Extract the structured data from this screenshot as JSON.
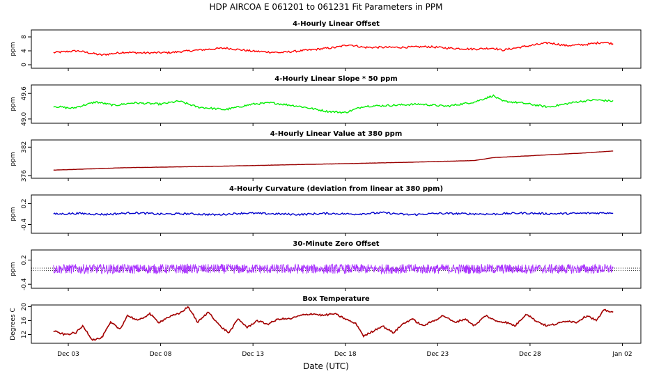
{
  "figure": {
    "title": "HDP   AIRCOA E   061201 to 061231   Fit Parameters in PPM",
    "xlabel": "Date (UTC)",
    "xticks": [
      "Dec 03",
      "Dec 08",
      "Dec 13",
      "Dec 18",
      "Dec 23",
      "Dec 28",
      "Jan 02"
    ]
  },
  "chart_data": [
    {
      "type": "line",
      "title": "4-Hourly Linear Offset",
      "ylabel": "ppm",
      "ylim": [
        -1,
        10
      ],
      "yticks": [
        "0",
        "4",
        "8"
      ],
      "xlim": [
        0,
        33
      ],
      "color": "#ff0000",
      "series_style": "line",
      "x": [
        1.2,
        2.5,
        3.8,
        5.0,
        6.0,
        7.5,
        9.0,
        10.5,
        12.0,
        13.5,
        15.0,
        16.5,
        17.2,
        18.0,
        20.0,
        21.5,
        22.5,
        24.0,
        25.0,
        25.5,
        27.0,
        28.0,
        29.0,
        30.0,
        31.0,
        31.5
      ],
      "values": [
        3.5,
        4.0,
        2.8,
        3.6,
        3.4,
        3.5,
        4.2,
        4.8,
        3.9,
        3.5,
        4.2,
        5.0,
        5.8,
        5.0,
        5.0,
        5.2,
        4.8,
        4.5,
        4.8,
        4.2,
        5.5,
        6.3,
        5.5,
        5.8,
        6.5,
        6.0
      ]
    },
    {
      "type": "line",
      "title": "4-Hourly Linear Slope * 50 ppm",
      "ylabel": "ppm",
      "ylim": [
        48.9,
        49.8
      ],
      "yticks": [
        "49.0",
        "49.6"
      ],
      "xlim": [
        0,
        33
      ],
      "color": "#00ee00",
      "series_style": "line",
      "x": [
        1.2,
        2.2,
        3.5,
        4.5,
        5.5,
        7.0,
        8.0,
        9.0,
        10.5,
        12.0,
        13.0,
        14.5,
        16.0,
        17.0,
        18.0,
        19.5,
        21.0,
        22.5,
        24.0,
        25.0,
        25.5,
        26.5,
        28.0,
        29.5,
        30.5,
        31.5
      ],
      "values": [
        49.3,
        49.25,
        49.4,
        49.32,
        49.38,
        49.35,
        49.42,
        49.28,
        49.22,
        49.35,
        49.38,
        49.3,
        49.18,
        49.15,
        49.3,
        49.32,
        49.35,
        49.3,
        49.4,
        49.55,
        49.42,
        49.38,
        49.28,
        49.4,
        49.45,
        49.42
      ]
    },
    {
      "type": "line",
      "title": "4-Hourly Linear Value at 380 ppm",
      "ylabel": "ppm",
      "ylim": [
        375.5,
        383.5
      ],
      "yticks": [
        "376",
        "382"
      ],
      "xlim": [
        0,
        33
      ],
      "color": "#990000",
      "series_style": "line",
      "x": [
        1.2,
        5.0,
        10.0,
        15.0,
        20.0,
        24.0,
        25.0,
        30.0,
        31.5
      ],
      "values": [
        377.2,
        377.7,
        378.0,
        378.4,
        378.8,
        379.2,
        379.8,
        380.8,
        381.2
      ]
    },
    {
      "type": "line",
      "title": "4-Hourly Curvature (deviation from linear at 380 ppm)",
      "ylabel": "ppm",
      "ylim": [
        -0.65,
        0.45
      ],
      "yticks": [
        "-0.4",
        "0.2"
      ],
      "xlim": [
        0,
        33
      ],
      "color": "#0000cc",
      "series_style": "line",
      "x": [
        1.2,
        2.5,
        4.0,
        5.5,
        7.0,
        8.5,
        10.0,
        11.5,
        13.0,
        14.5,
        16.0,
        17.5,
        19.0,
        20.5,
        22.0,
        23.5,
        25.0,
        26.5,
        28.0,
        29.5,
        31.5
      ],
      "values": [
        -0.1,
        -0.08,
        -0.11,
        -0.06,
        -0.1,
        -0.09,
        -0.12,
        -0.07,
        -0.09,
        -0.11,
        -0.08,
        -0.1,
        -0.06,
        -0.12,
        -0.08,
        -0.09,
        -0.1,
        -0.07,
        -0.09,
        -0.08,
        -0.06
      ]
    },
    {
      "type": "scatter",
      "title": "30-Minute Zero Offset",
      "ylabel": "ppm",
      "ylim": [
        -0.5,
        0.45
      ],
      "yticks": [
        "-0.4",
        "0.2"
      ],
      "xlim": [
        0,
        33
      ],
      "color": "#aa33ff",
      "series_style": "noise",
      "x": [
        1.2,
        31.5
      ],
      "values": [
        -0.02,
        -0.02
      ],
      "spread": 0.12,
      "reference_lines": [
        0.0,
        -0.06
      ]
    },
    {
      "type": "line",
      "title": "Box Temperature",
      "ylabel": "Degrees C",
      "ylim": [
        9.5,
        20.5
      ],
      "yticks": [
        "12",
        "16",
        "20"
      ],
      "xlim": [
        0,
        33
      ],
      "color": "#b00000",
      "series_style": "line",
      "x": [
        1.2,
        1.8,
        2.4,
        2.8,
        3.3,
        3.8,
        4.3,
        4.8,
        5.2,
        5.8,
        6.4,
        6.9,
        7.4,
        8.0,
        8.5,
        9.0,
        9.6,
        10.2,
        10.7,
        11.2,
        11.7,
        12.2,
        12.8,
        13.4,
        14.0,
        14.6,
        15.2,
        15.8,
        16.4,
        17.0,
        17.6,
        18.0,
        18.5,
        19.0,
        19.6,
        20.1,
        20.6,
        21.2,
        21.8,
        22.3,
        22.9,
        23.5,
        24.0,
        24.6,
        25.1,
        25.7,
        26.2,
        26.8,
        27.3,
        27.9,
        28.4,
        29.0,
        29.5,
        30.1,
        30.6,
        31.0,
        31.5
      ],
      "values": [
        13,
        12,
        12.5,
        14.5,
        10.5,
        11,
        15.5,
        13.5,
        17.5,
        16,
        18,
        15.5,
        17,
        18,
        20,
        15.5,
        18.5,
        14.5,
        12.5,
        16.5,
        14,
        16,
        15,
        16.5,
        16.5,
        17.5,
        18,
        17.5,
        18,
        16.5,
        15,
        11.5,
        13,
        14.5,
        12.5,
        15,
        16.5,
        14.5,
        16,
        17.5,
        15.5,
        16.5,
        14.5,
        17.5,
        16,
        15.5,
        14.5,
        18,
        16,
        14.5,
        15,
        16,
        15.5,
        17.5,
        16,
        19,
        18.5
      ]
    }
  ]
}
